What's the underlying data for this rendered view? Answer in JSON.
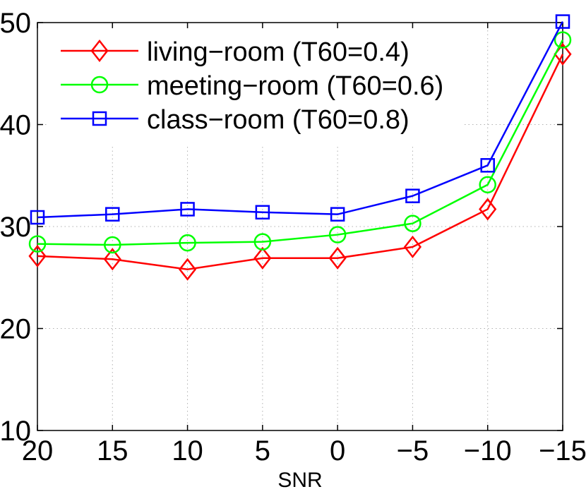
{
  "chart_data": {
    "type": "line",
    "title": "",
    "xlabel": "SNR",
    "ylabel": "",
    "categories": [
      "20",
      "15",
      "10",
      "5",
      "0",
      "−5",
      "−10",
      "−15"
    ],
    "ylim": [
      10,
      50
    ],
    "yticks": [
      "10",
      "20",
      "30",
      "40",
      "50"
    ],
    "grid": true,
    "legend_position": "top-left",
    "series": [
      {
        "name": "living−room (T60=0.4)",
        "color": "#ff0000",
        "marker": "diamond",
        "values": [
          27.1,
          26.8,
          25.8,
          26.9,
          26.9,
          28.0,
          31.7,
          46.9
        ]
      },
      {
        "name": "meeting−room (T60=0.6)",
        "color": "#00ff00",
        "marker": "circle",
        "values": [
          28.3,
          28.2,
          28.4,
          28.5,
          29.2,
          30.3,
          34.1,
          48.3
        ]
      },
      {
        "name": "class−room (T60=0.8)",
        "color": "#0000ff",
        "marker": "square",
        "values": [
          30.9,
          31.2,
          31.7,
          31.4,
          31.2,
          33.0,
          36.0,
          50.1
        ]
      }
    ]
  }
}
